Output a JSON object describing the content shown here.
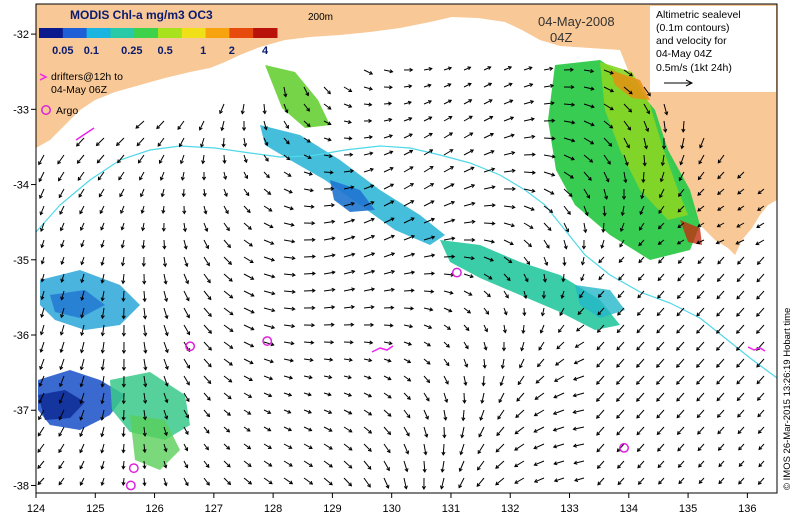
{
  "title": "MODIS Chl-a mg/m3 OC3",
  "colorbar": {
    "ticks": [
      "0.05",
      "0.1",
      "0.25",
      "0.5",
      "1",
      "2",
      "4"
    ],
    "colors": [
      "#0a1a8c",
      "#1f5fd6",
      "#19b4e0",
      "#27c9a6",
      "#3ed24a",
      "#a8e21c",
      "#f0e018",
      "#f7a20f",
      "#e64a0c",
      "#b8120a"
    ]
  },
  "isobath_label": "200m",
  "date": "04-May-2008",
  "time": "04Z",
  "legend": {
    "altimetry_lines": [
      "Altimetric sealevel",
      "(0.1m contours)",
      "and velocity for",
      "04-May 04Z"
    ],
    "scale_text": "0.5m/s (1kt 24h)",
    "drifter_lines": [
      "drifters@12h to",
      "04-May 06Z"
    ],
    "argo_label": "Argo"
  },
  "credit": "© IMOS 26-Mar-2015 13:26:19 Hobart time",
  "x_axis": {
    "ticks": [
      "124",
      "125",
      "126",
      "127",
      "128",
      "129",
      "130",
      "131",
      "132",
      "133",
      "134",
      "135",
      "136"
    ]
  },
  "y_axis": {
    "ticks": [
      "-32",
      "-33",
      "-34",
      "-35",
      "-36",
      "-37",
      "-38"
    ]
  },
  "argo_floats": [
    {
      "lon": 126.6,
      "lat": -36.15
    },
    {
      "lon": 127.9,
      "lat": -36.08
    },
    {
      "lon": 131.1,
      "lat": -35.17
    },
    {
      "lon": 125.65,
      "lat": -37.77
    },
    {
      "lon": 125.6,
      "lat": -38.0
    },
    {
      "lon": 133.92,
      "lat": -37.5
    }
  ],
  "colors": {
    "land": "#f8c896",
    "isobath": "#4fd8e8",
    "drifter": "#ee22ee",
    "argo": "#dd22dd",
    "arrow": "#000000"
  }
}
